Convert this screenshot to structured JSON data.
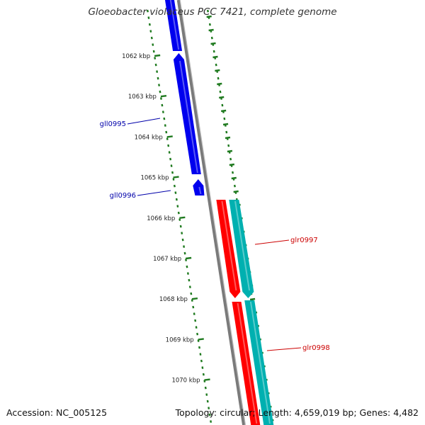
{
  "title": "Gloeobacter violaceus PCC 7421, complete genome",
  "footer": {
    "accession": "Accession: NC_005125",
    "summary": "Topology: circular; Length: 4,659,019 bp; Genes: 4,482"
  },
  "colors": {
    "forward_cds": "#ff0000",
    "forward_gene": "#00b0b0",
    "reverse_cds": "#0000ee",
    "backbone": "#7a7a7a",
    "ticks": "#1f7a1f",
    "forward_label": "#cc0000",
    "reverse_label": "#0000aa"
  },
  "ruler": {
    "ticks": [
      {
        "kbp": 1062,
        "label": "1062 kbp"
      },
      {
        "kbp": 1063,
        "label": "1063 kbp"
      },
      {
        "kbp": 1064,
        "label": "1064 kbp"
      },
      {
        "kbp": 1065,
        "label": "1065 kbp"
      },
      {
        "kbp": 1066,
        "label": "1066 kbp"
      },
      {
        "kbp": 1067,
        "label": "1067 kbp"
      },
      {
        "kbp": 1068,
        "label": "1068 kbp"
      },
      {
        "kbp": 1069,
        "label": "1069 kbp"
      },
      {
        "kbp": 1070,
        "label": "1070 kbp"
      }
    ]
  },
  "genes": [
    {
      "name": "gll0995",
      "strand": "reverse",
      "label_side": "left"
    },
    {
      "name": "gll0996",
      "strand": "reverse",
      "label_side": "left"
    },
    {
      "name": "glr0997",
      "strand": "forward",
      "label_side": "right"
    },
    {
      "name": "glr0998",
      "strand": "forward",
      "label_side": "right"
    }
  ]
}
